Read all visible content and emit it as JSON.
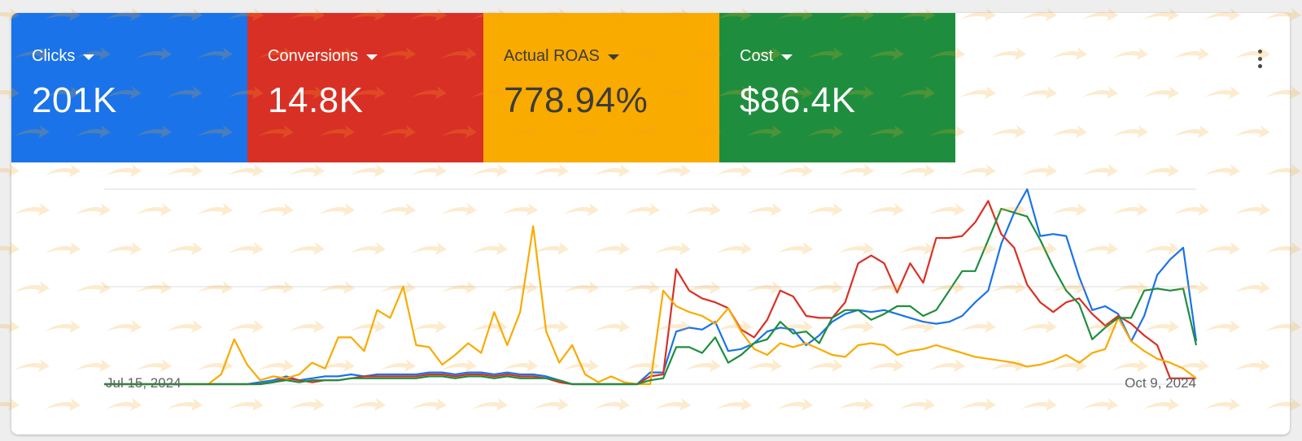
{
  "metrics": [
    {
      "label": "Clicks",
      "value": "201K",
      "color": "#1a73e8",
      "text_color": "#ffffff"
    },
    {
      "label": "Conversions",
      "value": "14.8K",
      "color": "#d93025",
      "text_color": "#ffffff"
    },
    {
      "label": "Actual ROAS",
      "value": "778.94%",
      "color": "#f9ab00",
      "text_color": "#3c3c3c"
    },
    {
      "label": "Cost",
      "value": "$86.4K",
      "color": "#1e8e3e",
      "text_color": "#ffffff"
    }
  ],
  "menu_icon": "more-vert-icon",
  "chart_data": {
    "type": "line",
    "x_start_label": "Jul 15, 2024",
    "x_end_label": "Oct 9, 2024",
    "grid": true,
    "y_scale": "relative (no tick labels shown)",
    "series": [
      {
        "color": "#1a73e8",
        "values": [
          0,
          0,
          0,
          0,
          0,
          0,
          0,
          0,
          0,
          0,
          0,
          0,
          0.01,
          0.02,
          0.04,
          0.02,
          0.03,
          0.04,
          0.04,
          0.05,
          0.04,
          0.05,
          0.05,
          0.05,
          0.05,
          0.06,
          0.06,
          0.05,
          0.06,
          0.06,
          0.05,
          0.06,
          0.05,
          0.05,
          0.04,
          0.02,
          0,
          0,
          0,
          0,
          0,
          0,
          0.06,
          0.06,
          0.27,
          0.29,
          0.28,
          0.32,
          0.17,
          0.18,
          0.21,
          0.27,
          0.29,
          0.28,
          0.2,
          0.25,
          0.32,
          0.36,
          0.38,
          0.37,
          0.38,
          0.36,
          0.34,
          0.32,
          0.31,
          0.32,
          0.35,
          0.42,
          0.48,
          0.72,
          0.88,
          1.0,
          0.76,
          0.77,
          0.76,
          0.55,
          0.38,
          0.4,
          0.36,
          0.22,
          0.35,
          0.56,
          0.64,
          0.7,
          0.22
        ]
      },
      {
        "color": "#d93025",
        "values": [
          0,
          0,
          0,
          0,
          0,
          0,
          0,
          0,
          0,
          0,
          0,
          0,
          0,
          0.01,
          0.03,
          0.02,
          0.01,
          0.02,
          0.02,
          0.03,
          0.04,
          0.04,
          0.04,
          0.04,
          0.04,
          0.05,
          0.05,
          0.04,
          0.05,
          0.05,
          0.04,
          0.05,
          0.04,
          0.04,
          0.03,
          0.01,
          0,
          0,
          0,
          0,
          0,
          0,
          0.04,
          0.05,
          0.59,
          0.48,
          0.44,
          0.42,
          0.39,
          0.28,
          0.24,
          0.33,
          0.48,
          0.45,
          0.35,
          0.34,
          0.34,
          0.42,
          0.62,
          0.66,
          0.62,
          0.47,
          0.62,
          0.52,
          0.75,
          0.75,
          0.76,
          0.83,
          0.94,
          0.77,
          0.7,
          0.51,
          0.42,
          0.37,
          0.42,
          0.44,
          0.36,
          0.3,
          0.35,
          0.31,
          0.25,
          0.2,
          0.03,
          0.03,
          0.03
        ]
      },
      {
        "color": "#f9ab00",
        "values": [
          0,
          0,
          0,
          0,
          0,
          0,
          0,
          0,
          0,
          0.05,
          0.23,
          0.1,
          0.02,
          0.04,
          0.03,
          0.05,
          0.11,
          0.08,
          0.24,
          0.24,
          0.17,
          0.38,
          0.34,
          0.5,
          0.2,
          0.19,
          0.1,
          0.15,
          0.21,
          0.16,
          0.37,
          0.2,
          0.37,
          0.81,
          0.27,
          0.11,
          0.2,
          0.05,
          0.01,
          0.04,
          0.01,
          0,
          0,
          0.48,
          0.4,
          0.37,
          0.35,
          0.31,
          0.39,
          0.27,
          0.18,
          0.15,
          0.21,
          0.19,
          0.21,
          0.18,
          0.15,
          0.14,
          0.2,
          0.21,
          0.2,
          0.15,
          0.17,
          0.18,
          0.2,
          0.18,
          0.16,
          0.14,
          0.13,
          0.12,
          0.11,
          0.09,
          0.1,
          0.12,
          0.15,
          0.11,
          0.16,
          0.18,
          0.34,
          0.22,
          0.17,
          0.13,
          0.11,
          0.08,
          0.03
        ]
      },
      {
        "color": "#1e8e3e",
        "values": [
          0,
          0,
          0,
          0,
          0,
          0,
          0,
          0,
          0,
          0,
          0,
          0,
          0,
          0.01,
          0.02,
          0.01,
          0.02,
          0.02,
          0.02,
          0.03,
          0.03,
          0.03,
          0.03,
          0.03,
          0.03,
          0.04,
          0.04,
          0.03,
          0.04,
          0.04,
          0.03,
          0.04,
          0.03,
          0.03,
          0.03,
          0.02,
          0,
          0,
          0,
          0,
          0,
          0,
          0.02,
          0.03,
          0.19,
          0.19,
          0.16,
          0.24,
          0.11,
          0.15,
          0.21,
          0.23,
          0.32,
          0.26,
          0.27,
          0.21,
          0.34,
          0.38,
          0.38,
          0.33,
          0.36,
          0.4,
          0.4,
          0.35,
          0.38,
          0.48,
          0.58,
          0.58,
          0.74,
          0.9,
          0.88,
          0.86,
          0.74,
          0.6,
          0.48,
          0.41,
          0.23,
          0.29,
          0.34,
          0.34,
          0.48,
          0.49,
          0.48,
          0.49,
          0.2
        ]
      }
    ]
  }
}
